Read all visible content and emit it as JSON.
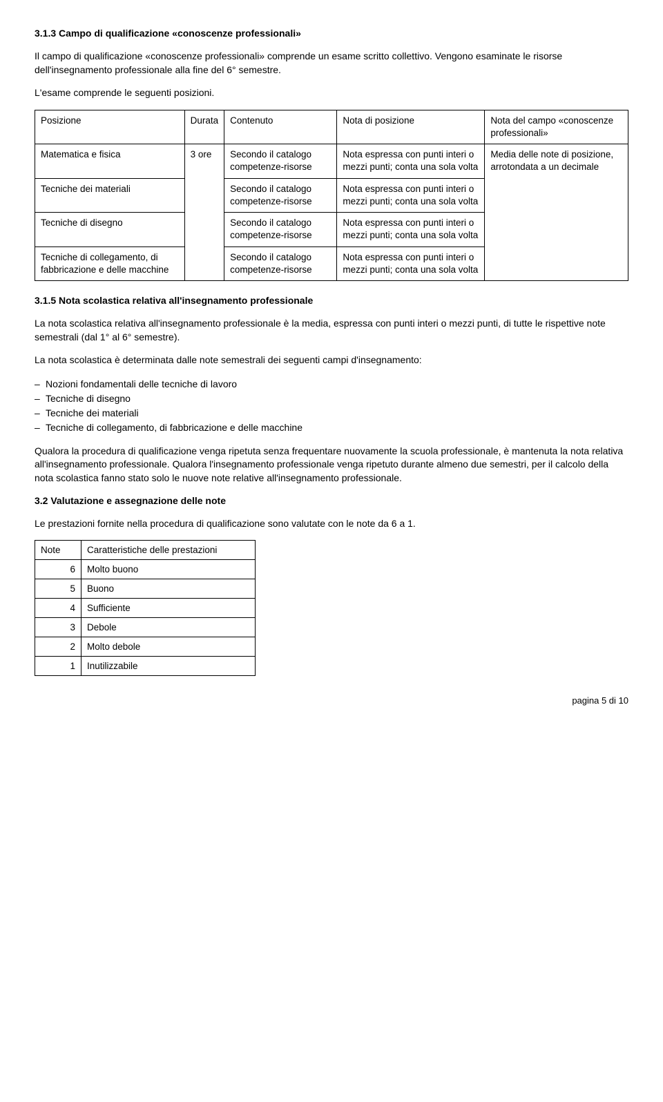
{
  "s313": {
    "heading": "3.1.3 Campo di qualificazione «conoscenze professionali»",
    "p1": "Il campo di qualificazione «conoscenze professionali» comprende un esame scritto collettivo. Vengono esaminate le risorse dell'insegnamento professionale alla fine del 6° semestre.",
    "p2": "L'esame comprende le seguenti posizioni.",
    "table": {
      "headers": {
        "posizione": "Posizione",
        "durata": "Durata",
        "contenuto": "Contenuto",
        "nota_pos": "Nota di posizione",
        "nota_campo": "Nota del campo «conoscenze professionali»"
      },
      "durata": "3 ore",
      "nota_campo": "Media delle note di posizione, arrotondata a un decimale",
      "rows": [
        {
          "posizione": "Matematica e fisica",
          "contenuto": "Secondo il catalogo competenze-risorse",
          "nota": "Nota espressa con punti interi o mezzi punti; conta una sola volta"
        },
        {
          "posizione": "Tecniche dei materiali",
          "contenuto": "Secondo il catalogo competenze-risorse",
          "nota": "Nota espressa con punti interi o mezzi punti; conta una sola volta"
        },
        {
          "posizione": "Tecniche di disegno",
          "contenuto": "Secondo il catalogo competenze-risorse",
          "nota": "Nota espressa con punti interi o mezzi punti; conta una sola volta"
        },
        {
          "posizione": "Tecniche di collegamento, di fabbricazione e delle macchine",
          "contenuto": "Secondo il catalogo competenze-risorse",
          "nota": "Nota espressa con punti interi o mezzi punti; conta una sola volta"
        }
      ]
    }
  },
  "s315": {
    "heading": "3.1.5 Nota scolastica relativa all'insegnamento professionale",
    "p1": "La nota scolastica relativa all'insegnamento professionale è la media, espressa con punti interi o mezzi punti, di tutte le rispettive note semestrali (dal 1° al 6° semestre).",
    "p2": "La nota scolastica è determinata dalle note semestrali dei seguenti campi d'insegnamento:",
    "list": [
      "Nozioni fondamentali delle tecniche di lavoro",
      "Tecniche di disegno",
      "Tecniche dei materiali",
      "Tecniche di collegamento, di fabbricazione e delle macchine"
    ],
    "p3": "Qualora la procedura di qualificazione venga ripetuta senza frequentare nuovamente la scuola professionale, è mantenuta la nota relativa all'insegnamento professionale. Qualora l'insegnamento professionale venga ripetuto durante almeno due semestri, per il calcolo della nota scolastica fanno stato solo le nuove note relative all'insegnamento professionale."
  },
  "s32": {
    "heading": "3.2 Valutazione e assegnazione delle note",
    "p1": "Le prestazioni fornite nella procedura di qualificazione sono valutate con le note da 6 a 1.",
    "table": {
      "col1": "Note",
      "col2": "Caratteristiche delle prestazioni",
      "rows": [
        {
          "n": "6",
          "label": "Molto buono"
        },
        {
          "n": "5",
          "label": "Buono"
        },
        {
          "n": "4",
          "label": "Sufficiente"
        },
        {
          "n": "3",
          "label": "Debole"
        },
        {
          "n": "2",
          "label": "Molto debole"
        },
        {
          "n": "1",
          "label": "Inutilizzabile"
        }
      ]
    }
  },
  "footer": "pagina 5 di 10"
}
